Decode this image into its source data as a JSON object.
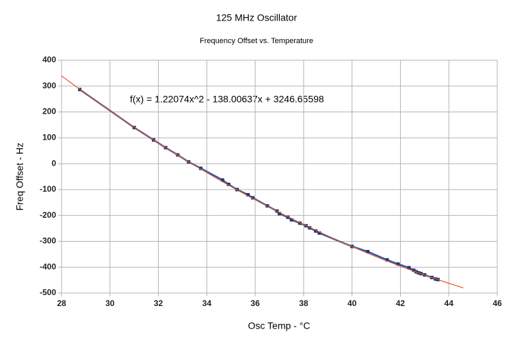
{
  "chart_data": {
    "type": "scatter",
    "title": "125 MHz Oscillator",
    "subtitle": "Frequency Offset vs. Temperature",
    "x_label": "Osc Temp - °C",
    "y_label": "Freq Offset - Hz",
    "x": [
      28.75,
      31.0,
      31.8,
      32.3,
      32.8,
      33.25,
      33.75,
      34.65,
      34.9,
      35.25,
      35.7,
      35.9,
      36.5,
      36.9,
      37.0,
      37.35,
      37.5,
      37.85,
      38.1,
      38.25,
      38.5,
      38.65,
      40.0,
      40.65,
      41.45,
      41.9,
      42.35,
      42.55,
      42.65,
      42.75,
      42.85,
      43.0,
      43.3,
      43.45,
      43.55
    ],
    "series": [
      {
        "color": "#2a5ea8",
        "marker_color": "#1b3a70",
        "values": [
          287,
          140,
          92,
          62,
          34,
          7,
          -18,
          -63,
          -80,
          -100,
          -120,
          -132,
          -163,
          -183,
          -193,
          -207,
          -217,
          -230,
          -240,
          -248,
          -260,
          -268,
          -320,
          -340,
          -372,
          -388,
          -402,
          -412,
          -418,
          -422,
          -425,
          -430,
          -440,
          -446,
          -448
        ]
      }
    ],
    "trendline": {
      "equation": "f(x) = 1.22074x^2 - 138.00637x + 3246.65598",
      "coefficients": [
        1.22074,
        -138.00637,
        3246.65598
      ],
      "x_range": [
        28,
        44.6
      ],
      "color": "#e8532d"
    },
    "xlim": [
      28,
      46
    ],
    "ylim": [
      -500,
      400
    ],
    "xticks": [
      28,
      30,
      32,
      34,
      36,
      38,
      40,
      42,
      44,
      46
    ],
    "yticks": [
      -500,
      -400,
      -300,
      -200,
      -100,
      0,
      100,
      200,
      300,
      400
    ],
    "grid": true
  }
}
